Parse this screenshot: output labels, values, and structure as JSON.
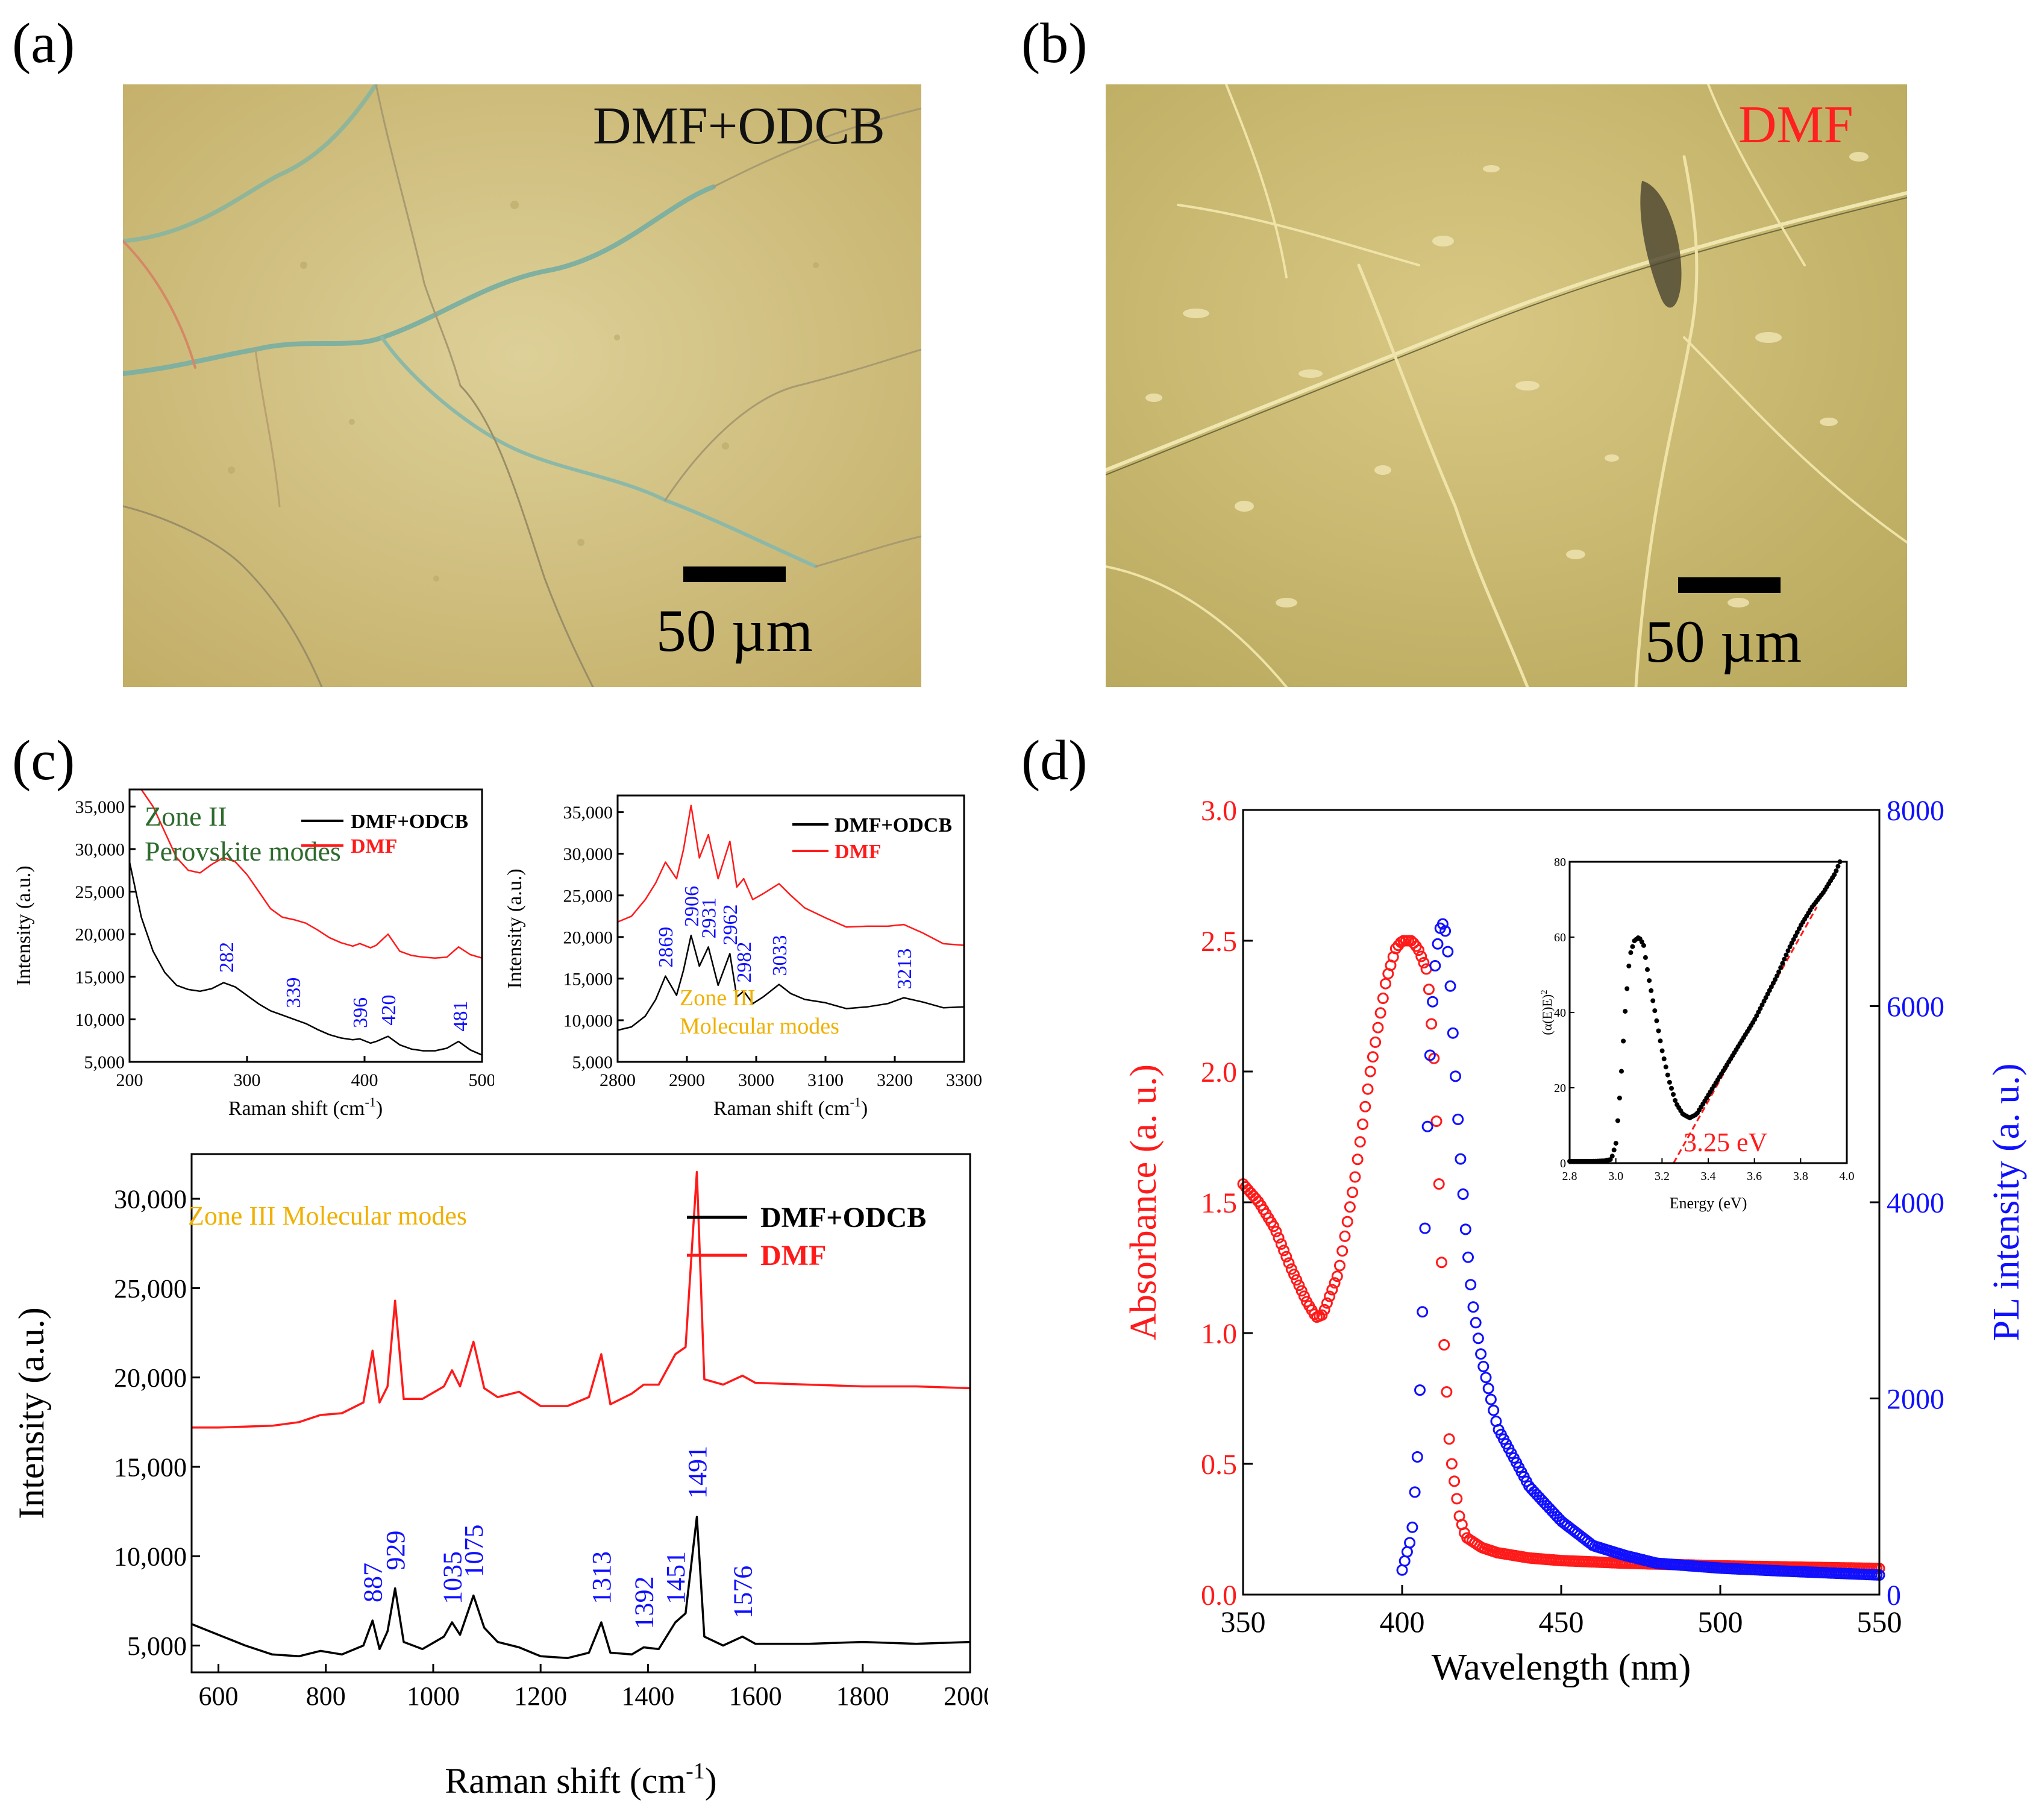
{
  "panels": {
    "a": {
      "letter": "(a)",
      "label": "DMF+ODCB",
      "scale_bar": "50 µm"
    },
    "b": {
      "letter": "(b)",
      "label": "DMF",
      "scale_bar": "50 µm"
    },
    "c": {
      "letter": "(c)"
    },
    "d": {
      "letter": "(d)"
    }
  },
  "colors": {
    "black": "#000000",
    "red": "#ff1a1a",
    "blue": "#1010ff",
    "green": "#2e6b2e",
    "gold": "#f0b000",
    "photo_a": "#d8c98a",
    "photo_b": "#d2c27a"
  },
  "chart_data": [
    {
      "id": "c1",
      "type": "line",
      "xlabel_main": "Raman shift (cm",
      "xlabel_sup": "-1",
      "xlabel_end": ")",
      "ylabel": "Intensity (a.u.)",
      "xlim": [
        200,
        500
      ],
      "ylim": [
        5000,
        37000
      ],
      "xticks": [
        200,
        300,
        400,
        500
      ],
      "yticks": [
        5000,
        10000,
        15000,
        20000,
        25000,
        30000,
        35000
      ],
      "ytick_labels": [
        "5,000",
        "10,000",
        "15,000",
        "20,000",
        "25,000",
        "30,000",
        "35,000"
      ],
      "zone_label": "Zone II",
      "zone_sub": "Perovskite modes",
      "legend": [
        "DMF+ODCB",
        "DMF"
      ],
      "peaks": [
        {
          "x": 282,
          "label": "282"
        },
        {
          "x": 339,
          "label": "339"
        },
        {
          "x": 396,
          "label": "396"
        },
        {
          "x": 420,
          "label": "420"
        },
        {
          "x": 481,
          "label": "481"
        }
      ],
      "series": [
        {
          "name": "DMF+ODCB",
          "color": "#000000",
          "x": [
            200,
            210,
            220,
            230,
            240,
            250,
            260,
            270,
            280,
            290,
            300,
            310,
            320,
            330,
            340,
            350,
            360,
            370,
            380,
            390,
            396,
            405,
            410,
            420,
            430,
            440,
            450,
            460,
            470,
            480,
            490,
            500
          ],
          "y": [
            28500,
            22000,
            18000,
            15500,
            14000,
            13500,
            13300,
            13600,
            14300,
            13800,
            12800,
            11800,
            11000,
            10500,
            10000,
            9500,
            8800,
            8200,
            7800,
            7600,
            7700,
            7200,
            7400,
            8000,
            7000,
            6500,
            6300,
            6300,
            6600,
            7400,
            6400,
            5800
          ]
        },
        {
          "name": "DMF",
          "color": "#ff1a1a",
          "x": [
            210,
            220,
            230,
            240,
            250,
            260,
            270,
            280,
            290,
            300,
            310,
            320,
            330,
            340,
            350,
            360,
            370,
            380,
            390,
            396,
            405,
            410,
            420,
            430,
            440,
            450,
            460,
            470,
            480,
            490,
            500
          ],
          "y": [
            37000,
            35000,
            32000,
            29000,
            27500,
            27200,
            28200,
            29000,
            28500,
            27000,
            25000,
            23000,
            22000,
            21700,
            21300,
            20500,
            19600,
            19000,
            18600,
            18900,
            18400,
            18700,
            20000,
            18000,
            17500,
            17300,
            17200,
            17300,
            18500,
            17600,
            17200
          ]
        }
      ]
    },
    {
      "id": "c2",
      "type": "line",
      "xlabel_main": "Raman shift (cm",
      "xlabel_sup": "-1",
      "xlabel_end": ")",
      "ylabel": "Intensity (a.u.)",
      "xlim": [
        2800,
        3300
      ],
      "ylim": [
        5000,
        37000
      ],
      "xticks": [
        2800,
        2900,
        3000,
        3100,
        3200,
        3300
      ],
      "yticks": [
        5000,
        10000,
        15000,
        20000,
        25000,
        30000,
        35000
      ],
      "ytick_labels": [
        "5,000",
        "10,000",
        "15,000",
        "20,000",
        "25,000",
        "30,000",
        "35,000"
      ],
      "zone_label": "Zone III",
      "zone_sub": "Molecular modes",
      "legend": [
        "DMF+ODCB",
        "DMF"
      ],
      "peaks": [
        {
          "x": 2869,
          "label": "2869"
        },
        {
          "x": 2906,
          "label": "2906"
        },
        {
          "x": 2931,
          "label": "2931"
        },
        {
          "x": 2962,
          "label": "2962"
        },
        {
          "x": 2982,
          "label": "2982"
        },
        {
          "x": 3033,
          "label": "3033"
        },
        {
          "x": 3213,
          "label": "3213"
        }
      ],
      "series": [
        {
          "name": "DMF+ODCB",
          "color": "#000000",
          "x": [
            2800,
            2820,
            2840,
            2855,
            2869,
            2885,
            2895,
            2906,
            2918,
            2931,
            2945,
            2962,
            2972,
            2982,
            2995,
            3010,
            3033,
            3050,
            3070,
            3100,
            3130,
            3160,
            3190,
            3213,
            3240,
            3270,
            3300
          ],
          "y": [
            8800,
            9200,
            10500,
            12500,
            15300,
            13000,
            16000,
            20200,
            16500,
            18800,
            14200,
            18000,
            12800,
            13500,
            12000,
            12800,
            14300,
            13200,
            12500,
            12100,
            11400,
            11600,
            12000,
            12700,
            12200,
            11500,
            11600
          ]
        },
        {
          "name": "DMF",
          "color": "#ff1a1a",
          "x": [
            2800,
            2820,
            2840,
            2855,
            2869,
            2885,
            2895,
            2906,
            2918,
            2931,
            2945,
            2962,
            2972,
            2982,
            2995,
            3010,
            3033,
            3050,
            3070,
            3100,
            3130,
            3160,
            3190,
            3213,
            3240,
            3270,
            3300
          ],
          "y": [
            21800,
            22500,
            24500,
            26500,
            29000,
            27000,
            30500,
            35800,
            29500,
            32300,
            27000,
            31500,
            26000,
            27000,
            24500,
            25200,
            26400,
            25000,
            23500,
            22300,
            21200,
            21300,
            21300,
            21500,
            20500,
            19200,
            19000
          ]
        }
      ]
    },
    {
      "id": "c3",
      "type": "line",
      "xlabel_main": "Raman shift (cm",
      "xlabel_sup": "-1",
      "xlabel_end": ")",
      "ylabel": "Intensity (a.u.)",
      "xlim": [
        550,
        2000
      ],
      "ylim": [
        3500,
        32500
      ],
      "xticks": [
        600,
        800,
        1000,
        1200,
        1400,
        1600,
        1800,
        2000
      ],
      "yticks": [
        5000,
        10000,
        15000,
        20000,
        25000,
        30000
      ],
      "ytick_labels": [
        "5,000",
        "10,000",
        "15,000",
        "20,000",
        "25,000",
        "30,000"
      ],
      "zone_label": "Zone III Molecular modes",
      "legend": [
        "DMF+ODCB",
        "DMF"
      ],
      "peaks": [
        {
          "x": 887,
          "label": "887"
        },
        {
          "x": 929,
          "label": "929"
        },
        {
          "x": 1035,
          "label": "1035"
        },
        {
          "x": 1075,
          "label": "1075"
        },
        {
          "x": 1313,
          "label": "1313"
        },
        {
          "x": 1392,
          "label": "1392"
        },
        {
          "x": 1451,
          "label": "1451"
        },
        {
          "x": 1491,
          "label": "1491"
        },
        {
          "x": 1576,
          "label": "1576"
        }
      ],
      "series": [
        {
          "name": "DMF+ODCB",
          "color": "#000000",
          "x": [
            550,
            600,
            650,
            700,
            750,
            790,
            830,
            870,
            887,
            900,
            915,
            929,
            945,
            980,
            1020,
            1035,
            1050,
            1075,
            1095,
            1120,
            1160,
            1200,
            1250,
            1290,
            1313,
            1330,
            1370,
            1392,
            1420,
            1451,
            1470,
            1491,
            1505,
            1540,
            1576,
            1600,
            1700,
            1800,
            1900,
            2000
          ],
          "y": [
            6200,
            5600,
            5000,
            4500,
            4400,
            4700,
            4500,
            5000,
            6400,
            4800,
            5800,
            8200,
            5200,
            4800,
            5500,
            6300,
            5600,
            7800,
            6000,
            5200,
            4900,
            4400,
            4300,
            4600,
            6300,
            4600,
            4500,
            4900,
            4800,
            6300,
            6800,
            12200,
            5500,
            5000,
            5500,
            5100,
            5100,
            5200,
            5100,
            5200
          ]
        },
        {
          "name": "DMF",
          "color": "#ff1a1a",
          "x": [
            550,
            600,
            700,
            750,
            790,
            830,
            870,
            887,
            900,
            915,
            929,
            945,
            980,
            1020,
            1035,
            1050,
            1075,
            1095,
            1120,
            1160,
            1200,
            1250,
            1290,
            1313,
            1330,
            1370,
            1392,
            1420,
            1451,
            1470,
            1491,
            1505,
            1540,
            1576,
            1600,
            1700,
            1800,
            1900,
            2000
          ],
          "y": [
            17200,
            17200,
            17300,
            17500,
            17900,
            18000,
            18600,
            21500,
            18600,
            19500,
            24300,
            18800,
            18800,
            19500,
            20400,
            19500,
            22000,
            19400,
            18900,
            19200,
            18400,
            18400,
            18900,
            21300,
            18500,
            19100,
            19600,
            19600,
            21300,
            21700,
            31500,
            19900,
            19600,
            20100,
            19700,
            19600,
            19500,
            19500,
            19400
          ]
        }
      ]
    },
    {
      "id": "d",
      "type": "scatter",
      "xlabel": "Wavelength (nm)",
      "ylabel_left": "Absorbance (a. u.)",
      "ylabel_right": "PL intensity (a. u.)",
      "xlim": [
        350,
        550
      ],
      "ylim_left": [
        0,
        3.0
      ],
      "ylim_right": [
        0,
        8000
      ],
      "xticks": [
        350,
        400,
        450,
        500,
        550
      ],
      "yticks_left": [
        0.0,
        0.5,
        1.0,
        1.5,
        2.0,
        2.5,
        3.0
      ],
      "ytick_labels_left": [
        "0.0",
        "0.5",
        "1.0",
        "1.5",
        "2.0",
        "2.5",
        "3.0"
      ],
      "yticks_right": [
        0,
        2000,
        4000,
        6000,
        8000
      ],
      "series": [
        {
          "name": "Absorbance",
          "axis": "left",
          "color": "#ff1a1a",
          "x": [
            350,
            355,
            360,
            365,
            370,
            373,
            375,
            380,
            385,
            390,
            395,
            398,
            400,
            403,
            405,
            408,
            410,
            412,
            413,
            415,
            418,
            420,
            425,
            430,
            440,
            450,
            470,
            500,
            550
          ],
          "y": [
            1.57,
            1.5,
            1.4,
            1.25,
            1.12,
            1.06,
            1.07,
            1.23,
            1.58,
            2.0,
            2.35,
            2.47,
            2.5,
            2.5,
            2.47,
            2.38,
            2.05,
            1.45,
            1.0,
            0.55,
            0.3,
            0.22,
            0.18,
            0.16,
            0.14,
            0.13,
            0.12,
            0.11,
            0.1
          ]
        },
        {
          "name": "PL intensity",
          "axis": "right",
          "color": "#1010ff",
          "x": [
            400,
            403,
            405,
            407,
            408,
            409,
            410,
            411,
            412,
            413,
            414,
            415,
            416,
            418,
            420,
            422,
            425,
            430,
            440,
            450,
            460,
            470,
            480,
            500,
            520,
            550
          ],
          "y": [
            250,
            600,
            1500,
            3500,
            4800,
            5700,
            6300,
            6600,
            6800,
            6850,
            6700,
            6300,
            5700,
            4600,
            3700,
            3000,
            2400,
            1700,
            1100,
            750,
            500,
            400,
            320,
            270,
            240,
            200
          ]
        }
      ],
      "inset": {
        "type": "scatter",
        "xlabel": "Energy (eV)",
        "ylabel": "(α(E)E)",
        "ylabel_sup": "2",
        "xlim": [
          2.8,
          4.0
        ],
        "ylim": [
          0,
          80
        ],
        "xticks": [
          2.8,
          3.0,
          3.2,
          3.4,
          3.6,
          3.8,
          4.0
        ],
        "xtick_labels": [
          "2.8",
          "3.0",
          "3.2",
          "3.4",
          "3.6",
          "3.8",
          "4.0"
        ],
        "yticks": [
          0,
          20,
          40,
          60,
          80
        ],
        "annotation": "3.25 eV",
        "fit_line": {
          "x": [
            3.25,
            3.87
          ],
          "y": [
            0,
            68
          ]
        },
        "series": [
          {
            "name": "(αE)^2",
            "color": "#000000",
            "x": [
              2.8,
              2.85,
              2.9,
              2.95,
              2.98,
              3.0,
              3.02,
              3.04,
              3.06,
              3.08,
              3.1,
              3.12,
              3.14,
              3.17,
              3.2,
              3.23,
              3.26,
              3.29,
              3.32,
              3.35,
              3.38,
              3.42,
              3.46,
              3.5,
              3.55,
              3.6,
              3.65,
              3.7,
              3.75,
              3.8,
              3.85,
              3.9,
              3.95,
              3.97
            ],
            "y": [
              0.5,
              0.5,
              0.5,
              0.6,
              1,
              5,
              20,
              40,
              55,
              59,
              60,
              58,
              50,
              40,
              30,
              22,
              16,
              13,
              12,
              13,
              16,
              20,
              24,
              28,
              33,
              38,
              44,
              50,
              57,
              63,
              68,
              72,
              77,
              80
            ]
          }
        ]
      }
    }
  ]
}
